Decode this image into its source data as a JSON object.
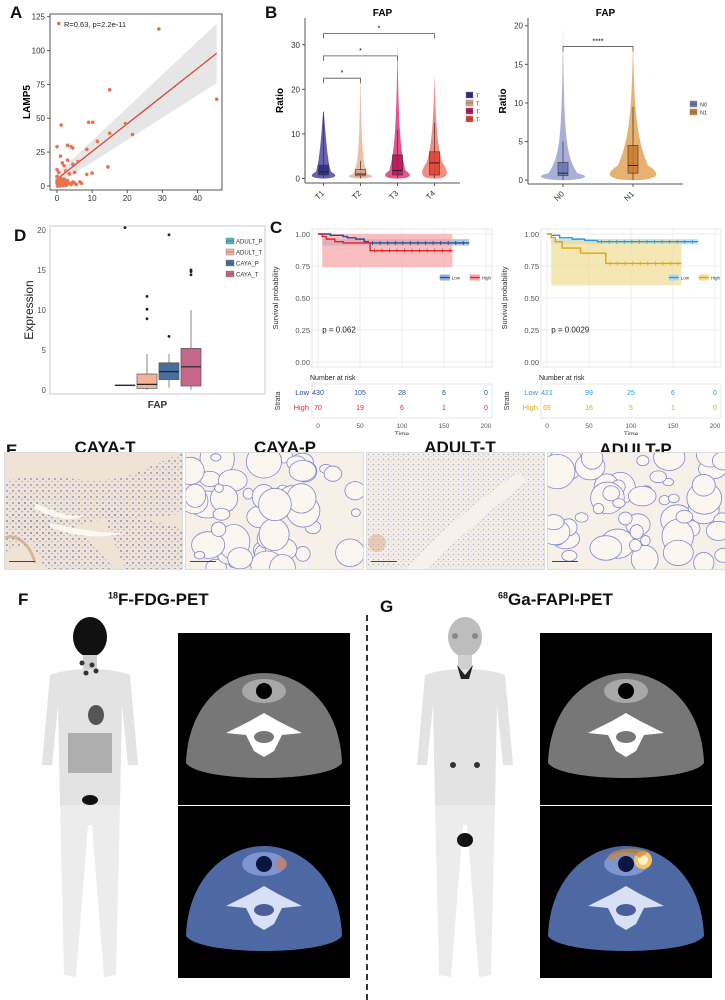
{
  "figure": {
    "panels": {
      "A": "A",
      "B": "B",
      "C": "C",
      "D": "D",
      "E": "E",
      "F": "F",
      "G": "G"
    }
  },
  "chart_data": [
    {
      "panel": "A",
      "type": "scatter",
      "title": "",
      "annotation": "R=0.63, p=2.2e-11",
      "xlabel": "FAP",
      "ylabel": "LAMP5",
      "xlim": [
        -2,
        47
      ],
      "ylim": [
        -3,
        127
      ],
      "xticks": [
        0,
        10,
        20,
        30,
        40
      ],
      "yticks": [
        0,
        25,
        50,
        75,
        100,
        125
      ],
      "points": [
        [
          0.5,
          120
        ],
        [
          29,
          116
        ],
        [
          15,
          71
        ],
        [
          45.5,
          64
        ],
        [
          1.2,
          45
        ],
        [
          9,
          47
        ],
        [
          10.2,
          47
        ],
        [
          19.5,
          46
        ],
        [
          15,
          39
        ],
        [
          21.5,
          38
        ],
        [
          11.5,
          33
        ],
        [
          0,
          29
        ],
        [
          3,
          30
        ],
        [
          4,
          29
        ],
        [
          4.5,
          28
        ],
        [
          8.5,
          27
        ],
        [
          1,
          22
        ],
        [
          3,
          19
        ],
        [
          1.5,
          17
        ],
        [
          4.5,
          16
        ],
        [
          6,
          18
        ],
        [
          14.5,
          14
        ],
        [
          2,
          15
        ],
        [
          0,
          12
        ],
        [
          0.5,
          10
        ],
        [
          2.5,
          11
        ],
        [
          3.5,
          9
        ],
        [
          5,
          10
        ],
        [
          8.5,
          8.5
        ],
        [
          10,
          9.5
        ],
        [
          0,
          7
        ],
        [
          1,
          6
        ],
        [
          2,
          5
        ],
        [
          3,
          4
        ],
        [
          6.5,
          3
        ],
        [
          4.5,
          3
        ],
        [
          0,
          2
        ],
        [
          0.3,
          1
        ],
        [
          0.6,
          2
        ],
        [
          1,
          1
        ],
        [
          1.4,
          0.5
        ],
        [
          1.8,
          2
        ],
        [
          2.2,
          1
        ],
        [
          2.6,
          0.5
        ],
        [
          3,
          1.5
        ],
        [
          0.2,
          0
        ],
        [
          0.8,
          0
        ],
        [
          1.2,
          3
        ],
        [
          0,
          4
        ],
        [
          0.5,
          5
        ],
        [
          1.5,
          4
        ],
        [
          2.5,
          2.5
        ],
        [
          3.5,
          2
        ],
        [
          4,
          1
        ],
        [
          5,
          2
        ],
        [
          5.5,
          1
        ],
        [
          7,
          2
        ],
        [
          0.3,
          3
        ],
        [
          1.7,
          0.3
        ],
        [
          2.3,
          3.5
        ]
      ],
      "regression": {
        "x0": 0,
        "y0": 5,
        "x1": 45.5,
        "y1": 98,
        "color": "#d9473a"
      },
      "ci_band": {
        "x": [
          0,
          45.5
        ],
        "lower_end": 76,
        "upper_end": 120
      },
      "point_color": "#e8714f"
    },
    {
      "panel": "B-left",
      "type": "violin",
      "title": "FAP",
      "xlabel": "",
      "ylabel": "Ratio",
      "categories": [
        "T1",
        "T2",
        "T3",
        "T4"
      ],
      "ylim": [
        -1,
        36
      ],
      "yticks": [
        0,
        10,
        20,
        30
      ],
      "series": [
        {
          "name": "T1",
          "color": "#2a2a8c",
          "fill": "#4a48a0",
          "q1": 0.8,
          "median": 1.5,
          "q3": 3.0,
          "whisker_hi": 15,
          "max": 15
        },
        {
          "name": "T2",
          "color": "#d9a27e",
          "fill": "#e6b59a",
          "q1": 0.6,
          "median": 1.0,
          "q3": 2.0,
          "whisker_hi": 4,
          "max": 25
        },
        {
          "name": "T3",
          "color": "#c0105a",
          "fill": "#e0357a",
          "q1": 0.8,
          "median": 1.8,
          "q3": 5.3,
          "whisker_hi": 11,
          "max": 30
        },
        {
          "name": "T4",
          "color": "#e0412e",
          "fill": "#f07a6a",
          "q1": 0.8,
          "median": 3.5,
          "q3": 6.0,
          "whisker_hi": 12.5,
          "max": 23.5
        }
      ],
      "significance": [
        {
          "from": "T1",
          "to": "T2",
          "y": 22.5,
          "label": "*"
        },
        {
          "from": "T1",
          "to": "T3",
          "y": 27.5,
          "label": "*"
        },
        {
          "from": "T1",
          "to": "T4",
          "y": 32.5,
          "label": "*"
        }
      ],
      "legend": [
        "T1",
        "T2",
        "T3",
        "T4"
      ],
      "legend_position": "right"
    },
    {
      "panel": "B-right",
      "type": "violin",
      "title": "FAP",
      "ylabel": "Ratio",
      "categories": [
        "N0",
        "N1"
      ],
      "ylim": [
        -0.5,
        21
      ],
      "yticks": [
        0,
        5,
        10,
        15,
        20
      ],
      "series": [
        {
          "name": "N0",
          "color": "#6a74b0",
          "fill": "#9aa2d0",
          "q1": 0.6,
          "median": 0.9,
          "q3": 2.3,
          "whisker_hi": 5,
          "max": 20
        },
        {
          "name": "N1",
          "color": "#c97a2c",
          "fill": "#e3a35c",
          "q1": 0.9,
          "median": 1.9,
          "q3": 4.5,
          "whisker_hi": 9.5,
          "max": 18.5
        }
      ],
      "significance": [
        {
          "from": "N0",
          "to": "N1",
          "y": 17.3,
          "label": "****"
        }
      ],
      "legend": [
        "N0",
        "N1"
      ],
      "legend_position": "right"
    },
    {
      "panel": "C-left",
      "type": "line",
      "subtype": "kaplan-meier",
      "xlabel": "Time",
      "ylabel": "Survival probability",
      "xlim": [
        0,
        200
      ],
      "ylim": [
        0,
        1
      ],
      "xticks": [
        0,
        50,
        100,
        150,
        200
      ],
      "yticks": [
        "0.00",
        "0.25",
        "0.50",
        "0.75",
        "1.00"
      ],
      "pvalue": "p = 0.062",
      "legend": [
        {
          "name": "Low",
          "color": "#1f4e96"
        },
        {
          "name": "High",
          "color": "#e0262a"
        }
      ],
      "series": [
        {
          "name": "Low",
          "color": "#1f4e96",
          "band": "#8fb0dd",
          "x": [
            0,
            5,
            15,
            30,
            35,
            45,
            55,
            60,
            180
          ],
          "y": [
            1.0,
            1.0,
            0.99,
            0.98,
            0.97,
            0.96,
            0.94,
            0.93,
            0.93
          ],
          "band_lo": 0.91,
          "band_hi": 0.96
        },
        {
          "name": "High",
          "color": "#e0262a",
          "band": "#f5a3a5",
          "x": [
            0,
            5,
            10,
            20,
            30,
            62,
            160
          ],
          "y": [
            1.0,
            0.98,
            0.96,
            0.94,
            0.93,
            0.87,
            0.87
          ],
          "band_lo": 0.74,
          "band_hi": 1.0
        }
      ],
      "risk_table": {
        "title": "Number at risk",
        "strata_label": "Strata",
        "times": [
          0,
          50,
          100,
          150,
          200
        ],
        "rows": [
          {
            "name": "Low",
            "color": "#1f4e96",
            "values": [
              430,
              105,
              28,
              6,
              0
            ]
          },
          {
            "name": "High",
            "color": "#e0262a",
            "values": [
              70,
              19,
              6,
              1,
              0
            ]
          }
        ]
      }
    },
    {
      "panel": "C-right",
      "type": "line",
      "subtype": "kaplan-meier",
      "xlabel": "Time",
      "ylabel": "Survival probability",
      "xlim": [
        0,
        200
      ],
      "ylim": [
        0,
        1
      ],
      "xticks": [
        0,
        50,
        100,
        150,
        200
      ],
      "yticks": [
        "0.00",
        "0.25",
        "0.50",
        "0.75",
        "1.00"
      ],
      "pvalue": "p = 0.0029",
      "legend": [
        {
          "name": "Low",
          "color": "#2a9ad8"
        },
        {
          "name": "High",
          "color": "#d9a90c"
        }
      ],
      "series": [
        {
          "name": "Low",
          "color": "#2a9ad8",
          "band": "#a9d7f2",
          "x": [
            0,
            5,
            15,
            30,
            45,
            60,
            180
          ],
          "y": [
            1.0,
            0.99,
            0.97,
            0.96,
            0.95,
            0.94,
            0.94
          ],
          "band_lo": 0.92,
          "band_hi": 0.96
        },
        {
          "name": "High",
          "color": "#d9a90c",
          "band": "#f1dd94",
          "x": [
            0,
            5,
            10,
            18,
            40,
            70,
            160
          ],
          "y": [
            1.0,
            0.97,
            0.94,
            0.89,
            0.85,
            0.77,
            0.77
          ],
          "band_lo": 0.6,
          "band_hi": 0.95
        }
      ],
      "risk_table": {
        "title": "Number at risk",
        "strata_label": "Strata",
        "times": [
          0,
          50,
          100,
          150,
          200
        ],
        "rows": [
          {
            "name": "Low",
            "color": "#2a9ad8",
            "values": [
              421,
              99,
              25,
              6,
              0
            ]
          },
          {
            "name": "High",
            "color": "#d9a90c",
            "values": [
              65,
              16,
              5,
              1,
              0
            ]
          }
        ]
      }
    },
    {
      "panel": "D",
      "type": "box",
      "xlabel": "FAP",
      "ylabel": "Expression",
      "ylim": [
        -0.5,
        20.5
      ],
      "yticks": [
        0,
        5,
        10,
        15,
        20
      ],
      "series": [
        {
          "name": "ADULT_P",
          "color": "#4fb3c6",
          "q1": 0.6,
          "median": 0.6,
          "q3": 0.6,
          "lo": 0.6,
          "hi": 0.6,
          "outliers": [
            20.3
          ]
        },
        {
          "name": "ADULT_T",
          "color": "#f3b39b",
          "q1": 0.2,
          "median": 0.7,
          "q3": 2.0,
          "lo": 0.0,
          "hi": 4.5,
          "outliers": [
            8.9,
            10.1,
            11.7
          ]
        },
        {
          "name": "CAYA_P",
          "color": "#4a6e9c",
          "q1": 1.3,
          "median": 2.3,
          "q3": 3.4,
          "lo": 0.3,
          "hi": 4.5,
          "outliers": [
            6.7,
            19.4
          ]
        },
        {
          "name": "CAYA_T",
          "color": "#c4678b",
          "q1": 0.5,
          "median": 2.9,
          "q3": 5.2,
          "lo": 0.0,
          "hi": 10.0,
          "outliers": [
            14.4,
            14.8,
            15.0
          ]
        }
      ],
      "legend": [
        "ADULT_P",
        "ADULT_T",
        "CAYA_P",
        "CAYA_T"
      ],
      "legend_position": "top-right"
    }
  ],
  "histology": {
    "images": [
      {
        "label": "CAYA-T"
      },
      {
        "label": "CAYA-P"
      },
      {
        "label": "ADULT-T"
      },
      {
        "label": "ADULT-P"
      }
    ]
  },
  "pet": {
    "F": {
      "sup": "18",
      "title": "F-FDG-PET"
    },
    "G": {
      "sup": "68",
      "title": "Ga-FAPI-PET"
    }
  }
}
